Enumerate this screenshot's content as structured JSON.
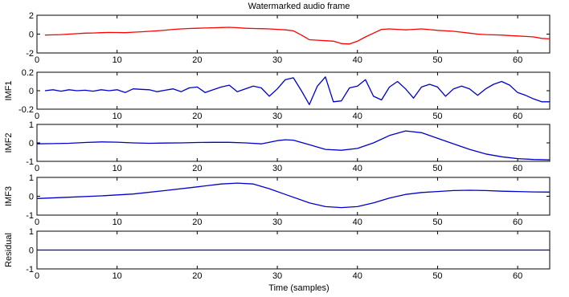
{
  "figure": {
    "title": "Watermarked audio frame",
    "xlabel": "Time (samples)"
  },
  "chart_data": [
    {
      "type": "line",
      "title": "Watermarked audio frame",
      "ylabel": "",
      "xlim": [
        0,
        64
      ],
      "ylim": [
        -2,
        2
      ],
      "xticks": [
        0,
        10,
        20,
        30,
        40,
        50,
        60
      ],
      "yticks": [
        -2,
        0,
        2
      ],
      "color": "#ff0000",
      "x": [
        1,
        2,
        3,
        4,
        5,
        6,
        7,
        8,
        9,
        10,
        11,
        12,
        13,
        14,
        15,
        16,
        17,
        18,
        19,
        20,
        21,
        22,
        23,
        24,
        25,
        26,
        27,
        28,
        29,
        30,
        31,
        32,
        33,
        34,
        35,
        36,
        37,
        38,
        39,
        40,
        41,
        42,
        43,
        44,
        45,
        46,
        47,
        48,
        49,
        50,
        51,
        52,
        53,
        54,
        55,
        56,
        57,
        58,
        59,
        60,
        61,
        62,
        63,
        64
      ],
      "y": [
        -0.1,
        -0.08,
        -0.05,
        0.0,
        0.05,
        0.1,
        0.12,
        0.15,
        0.18,
        0.17,
        0.15,
        0.2,
        0.25,
        0.3,
        0.35,
        0.42,
        0.5,
        0.55,
        0.6,
        0.62,
        0.65,
        0.67,
        0.7,
        0.72,
        0.68,
        0.62,
        0.6,
        0.58,
        0.55,
        0.5,
        0.45,
        0.35,
        -0.1,
        -0.6,
        -0.65,
        -0.7,
        -0.75,
        -1.0,
        -1.05,
        -0.75,
        -0.3,
        0.1,
        0.5,
        0.55,
        0.5,
        0.45,
        0.5,
        0.55,
        0.48,
        0.4,
        0.35,
        0.3,
        0.2,
        0.1,
        0.0,
        -0.05,
        -0.08,
        -0.1,
        -0.15,
        -0.2,
        -0.25,
        -0.3,
        -0.45,
        -0.5
      ]
    },
    {
      "type": "line",
      "ylabel": "IMF1",
      "xlim": [
        0,
        64
      ],
      "ylim": [
        -0.2,
        0.2
      ],
      "xticks": [
        0,
        10,
        20,
        30,
        40,
        50,
        60
      ],
      "yticks": [
        -0.2,
        0,
        0.2
      ],
      "color": "#0000cc",
      "x": [
        1,
        2,
        3,
        4,
        5,
        6,
        7,
        8,
        9,
        10,
        11,
        12,
        13,
        14,
        15,
        16,
        17,
        18,
        19,
        20,
        21,
        22,
        23,
        24,
        25,
        26,
        27,
        28,
        29,
        30,
        31,
        32,
        33,
        34,
        35,
        36,
        37,
        38,
        39,
        40,
        41,
        42,
        43,
        44,
        45,
        46,
        47,
        48,
        49,
        50,
        51,
        52,
        53,
        54,
        55,
        56,
        57,
        58,
        59,
        60,
        61,
        62,
        63,
        64
      ],
      "y": [
        0.0,
        0.01,
        -0.005,
        0.01,
        0.0,
        0.005,
        -0.005,
        0.01,
        0.0,
        0.01,
        -0.02,
        0.02,
        0.015,
        0.01,
        -0.01,
        0.005,
        0.02,
        -0.01,
        0.03,
        0.04,
        -0.02,
        0.01,
        0.04,
        0.06,
        -0.01,
        0.02,
        0.05,
        0.03,
        -0.06,
        0.02,
        0.12,
        0.14,
        0.0,
        -0.15,
        0.05,
        0.15,
        -0.12,
        -0.11,
        0.03,
        0.05,
        0.12,
        -0.06,
        -0.1,
        0.04,
        0.1,
        0.02,
        -0.08,
        0.04,
        0.07,
        0.04,
        -0.06,
        0.02,
        0.05,
        0.02,
        -0.05,
        0.02,
        0.07,
        0.1,
        0.06,
        -0.02,
        -0.05,
        -0.09,
        -0.12,
        -0.12
      ]
    },
    {
      "type": "line",
      "ylabel": "IMF2",
      "xlim": [
        0,
        64
      ],
      "ylim": [
        -1,
        1
      ],
      "xticks": [
        0,
        10,
        20,
        30,
        40,
        50,
        60
      ],
      "yticks": [
        -1,
        0,
        1
      ],
      "color": "#0000cc",
      "x": [
        0,
        2,
        4,
        6,
        8,
        10,
        12,
        14,
        16,
        18,
        20,
        22,
        24,
        26,
        28,
        30,
        31,
        32,
        34,
        36,
        38,
        40,
        42,
        44,
        46,
        48,
        50,
        52,
        54,
        56,
        58,
        60,
        62,
        64
      ],
      "y": [
        -0.05,
        -0.04,
        -0.02,
        0.02,
        0.05,
        0.04,
        0.0,
        -0.02,
        -0.01,
        0.0,
        0.02,
        0.03,
        0.03,
        0.0,
        -0.05,
        0.12,
        0.17,
        0.15,
        -0.1,
        -0.35,
        -0.4,
        -0.3,
        0.0,
        0.4,
        0.65,
        0.55,
        0.25,
        -0.05,
        -0.35,
        -0.6,
        -0.75,
        -0.85,
        -0.9,
        -0.92
      ]
    },
    {
      "type": "line",
      "ylabel": "IMF3",
      "xlim": [
        0,
        64
      ],
      "ylim": [
        -1,
        1
      ],
      "xticks": [
        0,
        10,
        20,
        30,
        40,
        50,
        60
      ],
      "yticks": [
        -1,
        0,
        1
      ],
      "color": "#0000cc",
      "x": [
        0,
        4,
        8,
        12,
        16,
        20,
        23,
        25,
        27,
        29,
        31,
        34,
        36,
        38,
        40,
        42,
        44,
        46,
        48,
        50,
        52,
        54,
        56,
        58,
        60,
        62,
        64
      ],
      "y": [
        -0.12,
        -0.05,
        0.02,
        0.12,
        0.3,
        0.5,
        0.65,
        0.7,
        0.65,
        0.4,
        0.1,
        -0.35,
        -0.55,
        -0.6,
        -0.55,
        -0.35,
        -0.1,
        0.1,
        0.2,
        0.25,
        0.3,
        0.32,
        0.3,
        0.27,
        0.25,
        0.23,
        0.22
      ]
    },
    {
      "type": "line",
      "ylabel": "Residual",
      "xlim": [
        0,
        64
      ],
      "ylim": [
        -1,
        1
      ],
      "xticks": [
        0,
        10,
        20,
        30,
        40,
        50,
        60
      ],
      "yticks": [
        -1,
        0,
        1
      ],
      "color": "#0000cc",
      "x": [
        0,
        64
      ],
      "y": [
        0,
        0
      ]
    }
  ]
}
